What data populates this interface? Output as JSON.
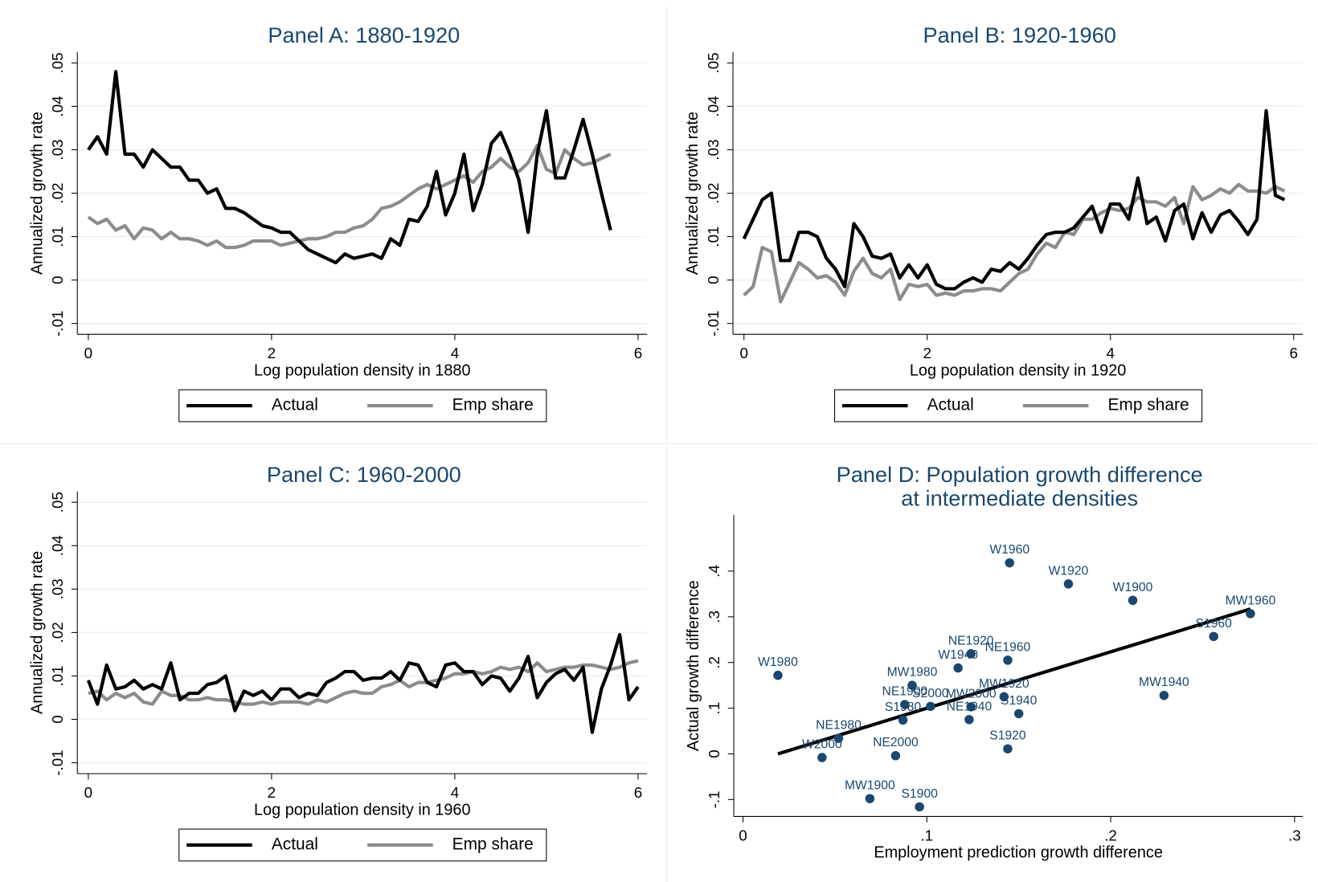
{
  "chart_data": [
    {
      "type": "line",
      "title": "Panel A: 1880-1920",
      "x_label": "Log population density in 1880",
      "y_label": "Annualized growth rate",
      "xlim": [
        -0.12,
        6.1
      ],
      "ylim": [
        -0.0125,
        0.0525
      ],
      "xticks": [
        0,
        2,
        4,
        6
      ],
      "yticks": [
        {
          "value": -0.01,
          "label": "-.01"
        },
        0,
        {
          "value": 0.01,
          "label": ".01"
        },
        {
          "value": 0.02,
          "label": ".02"
        },
        {
          "value": 0.03,
          "label": ".03"
        },
        {
          "value": 0.04,
          "label": ".04"
        },
        {
          "value": 0.05,
          "label": ".05"
        }
      ],
      "grid": true,
      "x": [
        0,
        0.1,
        0.2,
        0.3,
        0.4,
        0.5,
        0.6,
        0.7,
        0.8,
        0.9,
        1,
        1.1,
        1.2,
        1.3,
        1.4,
        1.5,
        1.6,
        1.7,
        1.8,
        1.9,
        2,
        2.1,
        2.2,
        2.3,
        2.4,
        2.5,
        2.6,
        2.7,
        2.8,
        2.9,
        3,
        3.1,
        3.2,
        3.3,
        3.4,
        3.5,
        3.6,
        3.7,
        3.8,
        3.9,
        4,
        4.1,
        4.2,
        4.3,
        4.4,
        4.5,
        4.6,
        4.7,
        4.8,
        4.9,
        5,
        5.1,
        5.2,
        5.3,
        5.4,
        5.5,
        5.6,
        5.7
      ],
      "series": [
        {
          "name": "Actual",
          "color": "#000000",
          "values": [
            0.03,
            0.033,
            0.029,
            0.048,
            0.029,
            0.029,
            0.026,
            0.03,
            0.028,
            0.026,
            0.026,
            0.023,
            0.023,
            0.02,
            0.021,
            0.0165,
            0.0165,
            0.0155,
            0.014,
            0.0125,
            0.012,
            0.011,
            0.011,
            0.009,
            0.007,
            0.006,
            0.005,
            0.004,
            0.006,
            0.005,
            0.0055,
            0.006,
            0.005,
            0.0095,
            0.008,
            0.014,
            0.0135,
            0.017,
            0.025,
            0.015,
            0.02,
            0.029,
            0.016,
            0.022,
            0.0315,
            0.034,
            0.029,
            0.023,
            0.011,
            0.029,
            0.039,
            0.0235,
            0.0235,
            0.03,
            0.037,
            0.029,
            0.02,
            0.0115
          ]
        },
        {
          "name": "Emp share",
          "color": "#8c8c8c",
          "values": [
            0.0145,
            0.013,
            0.014,
            0.0115,
            0.0125,
            0.0095,
            0.012,
            0.0115,
            0.0095,
            0.011,
            0.0095,
            0.0095,
            0.009,
            0.008,
            0.009,
            0.0075,
            0.0075,
            0.008,
            0.009,
            0.009,
            0.009,
            0.008,
            0.0085,
            0.009,
            0.0095,
            0.0095,
            0.01,
            0.011,
            0.011,
            0.012,
            0.0125,
            0.014,
            0.0165,
            0.017,
            0.018,
            0.0195,
            0.021,
            0.022,
            0.021,
            0.022,
            0.023,
            0.024,
            0.0225,
            0.025,
            0.026,
            0.028,
            0.026,
            0.025,
            0.027,
            0.031,
            0.0255,
            0.0245,
            0.03,
            0.028,
            0.0265,
            0.027,
            0.028,
            0.029
          ]
        }
      ]
    },
    {
      "type": "line",
      "title": "Panel B: 1920-1960",
      "x_label": "Log population density in 1920",
      "y_label": "Annualized growth rate",
      "xlim": [
        -0.12,
        6.1
      ],
      "ylim": [
        -0.0125,
        0.0525
      ],
      "xticks": [
        0,
        2,
        4,
        6
      ],
      "yticks": [
        {
          "value": -0.01,
          "label": "-.01"
        },
        0,
        {
          "value": 0.01,
          "label": ".01"
        },
        {
          "value": 0.02,
          "label": ".02"
        },
        {
          "value": 0.03,
          "label": ".03"
        },
        {
          "value": 0.04,
          "label": ".04"
        },
        {
          "value": 0.05,
          "label": ".05"
        }
      ],
      "grid": true,
      "x": [
        0,
        0.1,
        0.2,
        0.3,
        0.4,
        0.5,
        0.6,
        0.7,
        0.8,
        0.9,
        1,
        1.1,
        1.2,
        1.3,
        1.4,
        1.5,
        1.6,
        1.7,
        1.8,
        1.9,
        2,
        2.1,
        2.2,
        2.3,
        2.4,
        2.5,
        2.6,
        2.7,
        2.8,
        2.9,
        3,
        3.1,
        3.2,
        3.3,
        3.4,
        3.5,
        3.6,
        3.7,
        3.8,
        3.9,
        4,
        4.1,
        4.2,
        4.3,
        4.4,
        4.5,
        4.6,
        4.7,
        4.8,
        4.9,
        5,
        5.1,
        5.2,
        5.3,
        5.4,
        5.5,
        5.6,
        5.7,
        5.8,
        5.9
      ],
      "series": [
        {
          "name": "Actual",
          "color": "#000000",
          "values": [
            0.0095,
            0.014,
            0.0185,
            0.02,
            0.0045,
            0.0045,
            0.011,
            0.011,
            0.01,
            0.005,
            0.0025,
            -0.0015,
            0.013,
            0.01,
            0.0055,
            0.005,
            0.006,
            0.0005,
            0.0035,
            0.0005,
            0.0035,
            -0.001,
            -0.002,
            -0.002,
            -0.0005,
            0.0005,
            -0.0005,
            0.0025,
            0.002,
            0.004,
            0.0025,
            0.005,
            0.008,
            0.0105,
            0.011,
            0.011,
            0.012,
            0.0145,
            0.017,
            0.011,
            0.0175,
            0.0175,
            0.014,
            0.0235,
            0.013,
            0.0145,
            0.009,
            0.016,
            0.0175,
            0.0095,
            0.0155,
            0.011,
            0.015,
            0.016,
            0.0135,
            0.0105,
            0.014,
            0.039,
            0.0195,
            0.0185
          ]
        },
        {
          "name": "Emp share",
          "color": "#8c8c8c",
          "values": [
            -0.0035,
            -0.0015,
            0.0075,
            0.0065,
            -0.005,
            -0.0005,
            0.004,
            0.0025,
            0.0005,
            0.001,
            -0.0005,
            -0.0035,
            0.002,
            0.005,
            0.0015,
            0.0005,
            0.0025,
            -0.0045,
            -0.001,
            -0.0015,
            -0.001,
            -0.0035,
            -0.003,
            -0.0035,
            -0.0025,
            -0.0025,
            -0.002,
            -0.002,
            -0.0025,
            -0.0005,
            0.0015,
            0.0025,
            0.006,
            0.0085,
            0.0075,
            0.011,
            0.0105,
            0.014,
            0.014,
            0.0155,
            0.0165,
            0.016,
            0.0165,
            0.019,
            0.018,
            0.018,
            0.017,
            0.019,
            0.013,
            0.0215,
            0.0185,
            0.0195,
            0.021,
            0.02,
            0.022,
            0.0205,
            0.0205,
            0.02,
            0.0215,
            0.0205
          ]
        }
      ]
    },
    {
      "type": "line",
      "title": "Panel C: 1960-2000",
      "x_label": "Log population density in 1960",
      "y_label": "Annualized growth rate",
      "xlim": [
        -0.12,
        6.1
      ],
      "ylim": [
        -0.0125,
        0.0525
      ],
      "xticks": [
        0,
        2,
        4,
        6
      ],
      "yticks": [
        {
          "value": -0.01,
          "label": "-.01"
        },
        0,
        {
          "value": 0.01,
          "label": ".01"
        },
        {
          "value": 0.02,
          "label": ".02"
        },
        {
          "value": 0.03,
          "label": ".03"
        },
        {
          "value": 0.04,
          "label": ".04"
        },
        {
          "value": 0.05,
          "label": ".05"
        }
      ],
      "grid": true,
      "x": [
        0,
        0.1,
        0.2,
        0.3,
        0.4,
        0.5,
        0.6,
        0.7,
        0.8,
        0.9,
        1,
        1.1,
        1.2,
        1.3,
        1.4,
        1.5,
        1.6,
        1.7,
        1.8,
        1.9,
        2,
        2.1,
        2.2,
        2.3,
        2.4,
        2.5,
        2.6,
        2.7,
        2.8,
        2.9,
        3,
        3.1,
        3.2,
        3.3,
        3.4,
        3.5,
        3.6,
        3.7,
        3.8,
        3.9,
        4,
        4.1,
        4.2,
        4.3,
        4.4,
        4.5,
        4.6,
        4.7,
        4.8,
        4.9,
        5,
        5.1,
        5.2,
        5.3,
        5.4,
        5.5,
        5.6,
        5.7,
        5.8,
        5.9,
        6
      ],
      "series": [
        {
          "name": "Actual",
          "color": "#000000",
          "values": [
            0.009,
            0.0035,
            0.0125,
            0.007,
            0.0075,
            0.009,
            0.007,
            0.008,
            0.007,
            0.013,
            0.0045,
            0.006,
            0.006,
            0.008,
            0.0085,
            0.01,
            0.002,
            0.0065,
            0.0055,
            0.0065,
            0.0045,
            0.007,
            0.007,
            0.005,
            0.006,
            0.0055,
            0.0085,
            0.0095,
            0.011,
            0.011,
            0.009,
            0.0095,
            0.0095,
            0.011,
            0.009,
            0.013,
            0.0125,
            0.0085,
            0.0075,
            0.0125,
            0.013,
            0.011,
            0.011,
            0.008,
            0.01,
            0.0095,
            0.0065,
            0.0095,
            0.0145,
            0.005,
            0.0085,
            0.0105,
            0.0115,
            0.009,
            0.012,
            -0.003,
            0.007,
            0.0125,
            0.0195,
            0.0045,
            0.0075
          ]
        },
        {
          "name": "Emp share",
          "color": "#8c8c8c",
          "values": [
            0.006,
            0.0065,
            0.0045,
            0.006,
            0.005,
            0.006,
            0.004,
            0.0035,
            0.0065,
            0.0055,
            0.0055,
            0.0045,
            0.0045,
            0.005,
            0.0045,
            0.0045,
            0.004,
            0.0035,
            0.0035,
            0.004,
            0.0035,
            0.004,
            0.004,
            0.004,
            0.0035,
            0.0045,
            0.004,
            0.005,
            0.006,
            0.0065,
            0.006,
            0.006,
            0.0075,
            0.008,
            0.009,
            0.0075,
            0.0085,
            0.0085,
            0.009,
            0.0095,
            0.0105,
            0.0105,
            0.011,
            0.0105,
            0.011,
            0.012,
            0.0115,
            0.012,
            0.011,
            0.013,
            0.011,
            0.0115,
            0.012,
            0.012,
            0.0125,
            0.0125,
            0.012,
            0.0115,
            0.012,
            0.013,
            0.0135
          ]
        }
      ]
    },
    {
      "type": "scatter",
      "title": [
        "Panel D:  Population growth difference",
        "at intermediate densities"
      ],
      "x_label": "Employment prediction growth difference",
      "y_label": "Actual growth difference",
      "xlim": [
        -0.005,
        0.3045
      ],
      "ylim": [
        -0.137,
        0.523
      ],
      "xticks": [
        0,
        {
          "value": 0.1,
          "label": ".1"
        },
        {
          "value": 0.2,
          "label": ".2"
        },
        {
          "value": 0.3,
          "label": ".3"
        }
      ],
      "yticks": [
        {
          "value": -0.1,
          "label": "-.1"
        },
        0,
        {
          "value": 0.1,
          "label": ".1"
        },
        {
          "value": 0.2,
          "label": ".2"
        },
        {
          "value": 0.3,
          "label": ".3"
        },
        {
          "value": 0.4,
          "label": ".4"
        }
      ],
      "grid": false,
      "points": {
        "color": "#1a476f",
        "labels": [
          "W1960",
          "W1920",
          "W1900",
          "MW1960",
          "S1960",
          "W1980",
          "NE1920",
          "NE1960",
          "W1940",
          "MW1980",
          "MW1920",
          "MW1940",
          "NE1900",
          "S2000",
          "MW2000",
          "NE1940",
          "S1940",
          "S1980",
          "NE1980",
          "S1920",
          "W2000",
          "NE2000",
          "MW1900",
          "S1900"
        ],
        "x": [
          0.145,
          0.177,
          0.212,
          0.276,
          0.256,
          0.019,
          0.124,
          0.144,
          0.117,
          0.092,
          0.142,
          0.229,
          0.088,
          0.102,
          0.124,
          0.123,
          0.15,
          0.087,
          0.052,
          0.144,
          0.043,
          0.083,
          0.069,
          0.096
        ],
        "values": [
          0.418,
          0.372,
          0.336,
          0.307,
          0.257,
          0.172,
          0.219,
          0.205,
          0.188,
          0.15,
          0.125,
          0.128,
          0.108,
          0.104,
          0.103,
          0.075,
          0.088,
          0.074,
          0.034,
          0.011,
          -0.008,
          -0.004,
          -0.098,
          -0.116
        ]
      },
      "fit_line": {
        "color": "#000000",
        "x": [
          0.019,
          0.276
        ],
        "values": [
          0.0,
          0.317
        ]
      }
    }
  ]
}
